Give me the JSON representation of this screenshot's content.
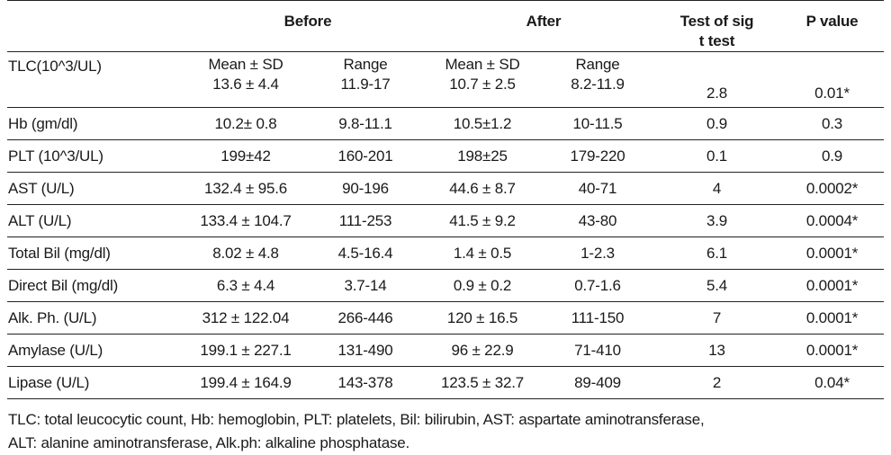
{
  "header": {
    "before": "Before",
    "after": "After",
    "test_line1": "Test of sig",
    "test_line2": "t test",
    "p_value": "P value"
  },
  "first_row": {
    "param": "TLC(10^3/UL)",
    "before_mean_label": "Mean ± SD",
    "before_mean": "13.6 ± 4.4",
    "before_range_label": "Range",
    "before_range": "11.9-17",
    "after_mean_label": "Mean ± SD",
    "after_mean": "10.7 ± 2.5",
    "after_range_label": "Range",
    "after_range": "8.2-11.9",
    "t_test": "2.8",
    "p_value": "0.01*"
  },
  "rows": [
    {
      "param": "Hb (gm/dl)",
      "before_mean": "10.2± 0.8",
      "before_range": "9.8-11.1",
      "after_mean": "10.5±1.2",
      "after_range": "10-11.5",
      "t_test": "0.9",
      "p_value": "0.3"
    },
    {
      "param": "PLT (10^3/UL)",
      "before_mean": "199±42",
      "before_range": "160-201",
      "after_mean": "198±25",
      "after_range": "179-220",
      "t_test": "0.1",
      "p_value": "0.9"
    },
    {
      "param": "AST (U/L)",
      "before_mean": "132.4 ± 95.6",
      "before_range": "90-196",
      "after_mean": "44.6 ± 8.7",
      "after_range": "40-71",
      "t_test": "4",
      "p_value": "0.0002*"
    },
    {
      "param": "ALT (U/L)",
      "before_mean": "133.4 ± 104.7",
      "before_range": "111-253",
      "after_mean": "41.5 ± 9.2",
      "after_range": "43-80",
      "t_test": "3.9",
      "p_value": "0.0004*"
    },
    {
      "param": "Total Bil (mg/dl)",
      "before_mean": "8.02 ± 4.8",
      "before_range": "4.5-16.4",
      "after_mean": "1.4 ± 0.5",
      "after_range": "1-2.3",
      "t_test": "6.1",
      "p_value": "0.0001*"
    },
    {
      "param": "Direct Bil (mg/dl)",
      "before_mean": "6.3 ± 4.4",
      "before_range": "3.7-14",
      "after_mean": "0.9 ± 0.2",
      "after_range": "0.7-1.6",
      "t_test": "5.4",
      "p_value": "0.0001*"
    },
    {
      "param": "Alk. Ph. (U/L)",
      "before_mean": "312 ± 122.04",
      "before_range": "266-446",
      "after_mean": "120 ± 16.5",
      "after_range": "111-150",
      "t_test": "7",
      "p_value": "0.0001*"
    },
    {
      "param": "Amylase (U/L)",
      "before_mean": "199.1 ± 227.1",
      "before_range": "131-490",
      "after_mean": "96 ± 22.9",
      "after_range": "71-410",
      "t_test": "13",
      "p_value": "0.0001*"
    },
    {
      "param": "Lipase (U/L)",
      "before_mean": "199.4 ± 164.9",
      "before_range": "143-378",
      "after_mean": "123.5 ± 32.7",
      "after_range": "89-409",
      "t_test": "2",
      "p_value": "0.04*"
    }
  ],
  "footnote": {
    "line1": "TLC: total leucocytic count, Hb: hemoglobin, PLT: platelets, Bil: bilirubin, AST: aspartate aminotransferase,",
    "line2": "ALT: alanine aminotransferase, Alk.ph: alkaline phosphatase."
  }
}
